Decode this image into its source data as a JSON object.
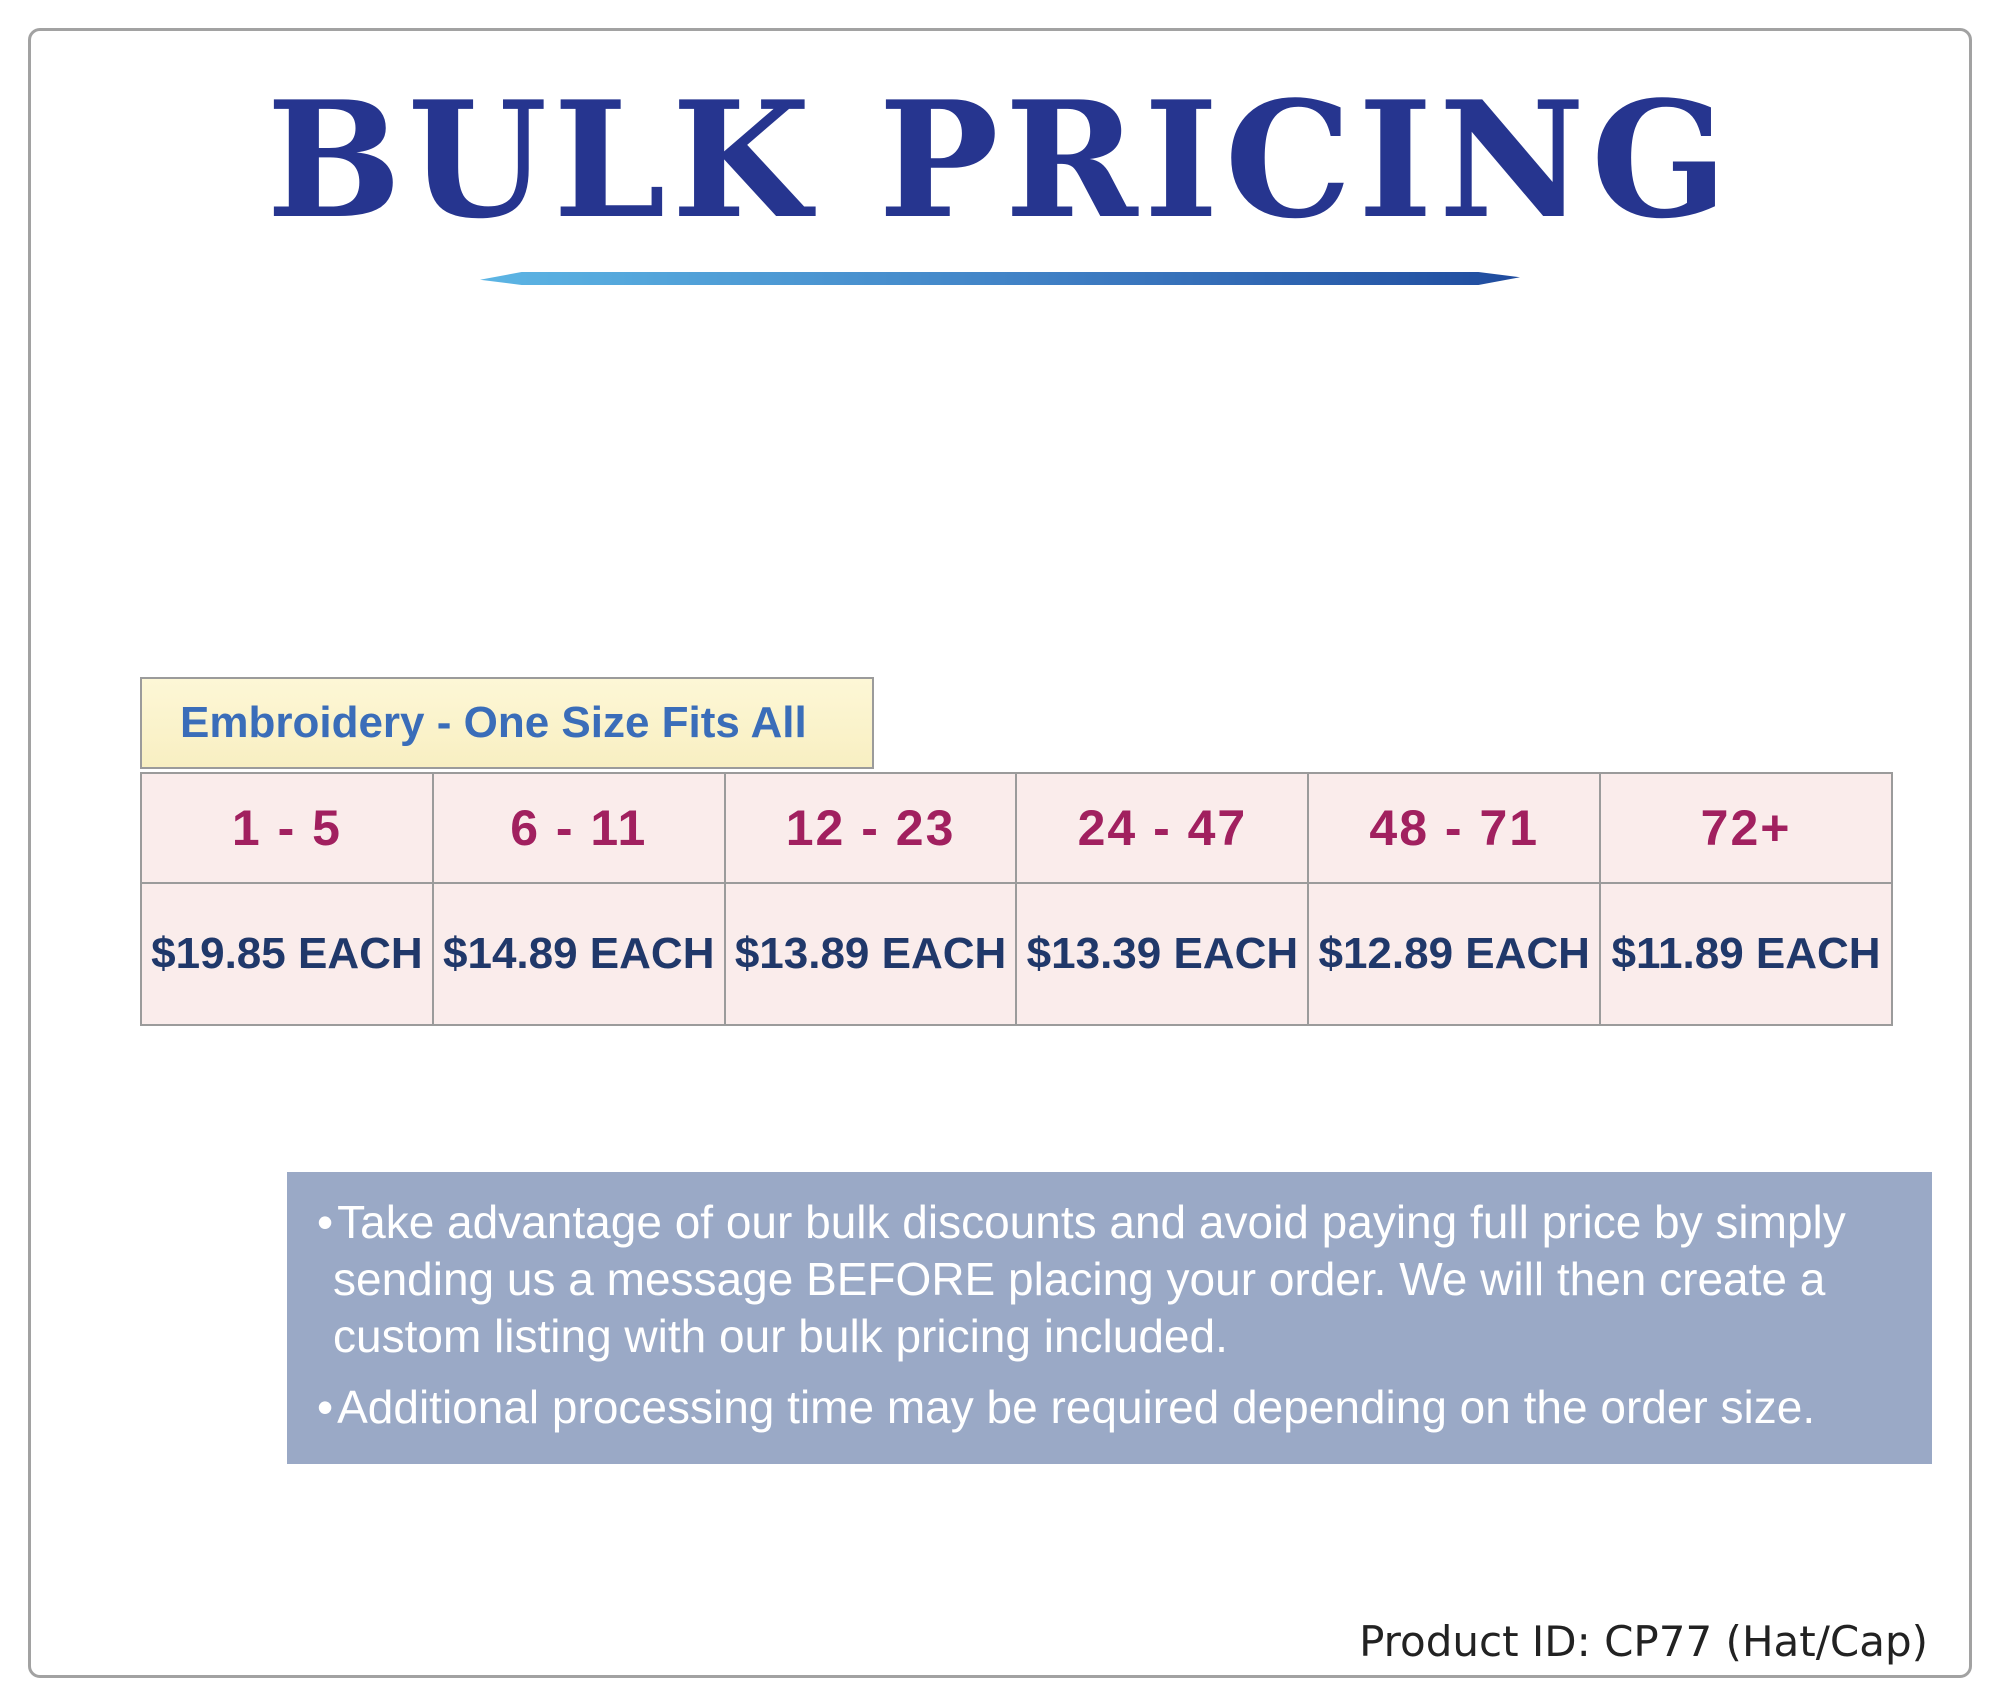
{
  "page": {
    "title": "BULK PRICING",
    "product_id": "Product ID: CP77 (Hat/Cap)"
  },
  "pricing": {
    "category_label": "Embroidery - One Size Fits All",
    "tiers": [
      {
        "range": "1 - 5",
        "price": "$19.85 EACH"
      },
      {
        "range": "6 - 11",
        "price": "$14.89 EACH"
      },
      {
        "range": "12 - 23",
        "price": "$13.89 EACH"
      },
      {
        "range": "24 - 47",
        "price": "$13.39 EACH"
      },
      {
        "range": "48 - 71",
        "price": "$12.89 EACH"
      },
      {
        "range": "72+",
        "price": "$11.89 EACH"
      }
    ]
  },
  "notes": [
    "Take advantage of our bulk discounts and avoid paying full price by simply sending us a message BEFORE placing your order. We will then create a custom listing with our bulk pricing included.",
    "Additional processing time may be required depending on the order size."
  ],
  "colors": {
    "title_blue": "#26358f",
    "underline_light_blue": "#5cb5e4",
    "underline_dark_blue": "#1f4b9e",
    "category_box_yellow": "#faf2c9",
    "category_text_blue": "#3a6db9",
    "table_cell_pink": "#faeceb",
    "range_text_maroon": "#a1205f",
    "price_text_navy": "#20386a",
    "border_gray": "#9b9b9b",
    "notes_box_blue_gray": "#8496ba",
    "notes_text": "#ffffff"
  }
}
